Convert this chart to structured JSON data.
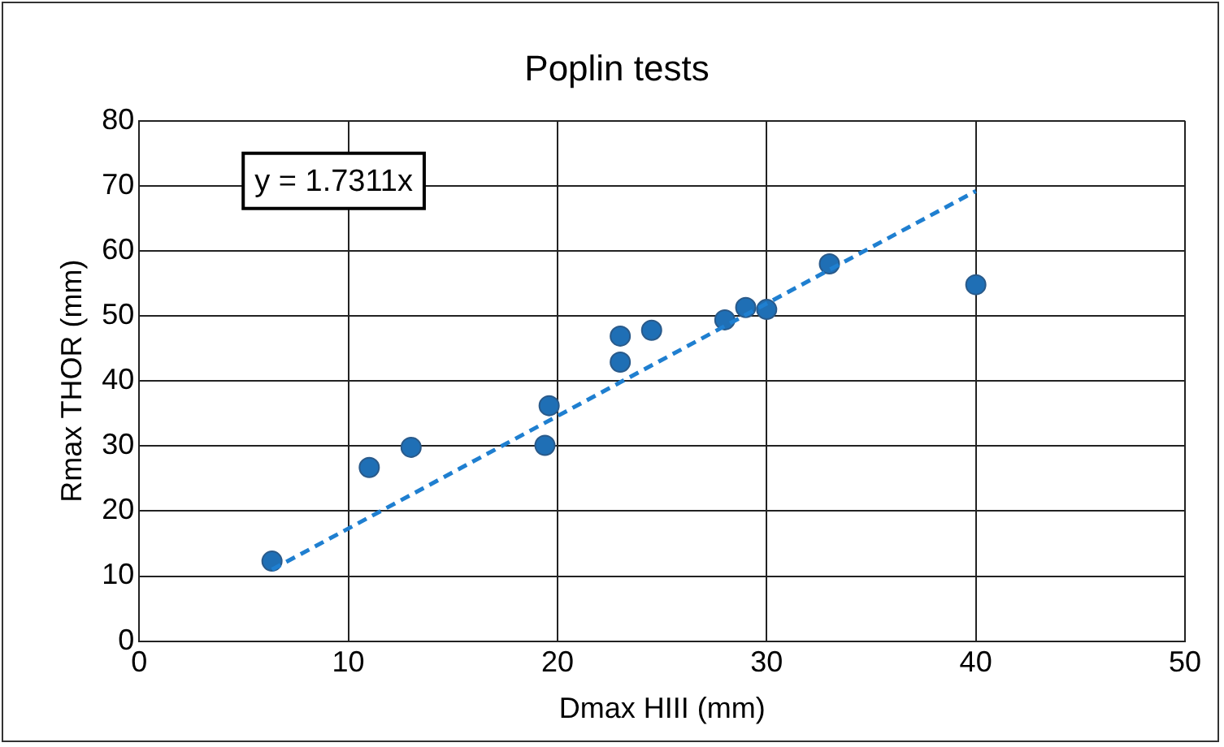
{
  "chart_data": {
    "type": "scatter",
    "title": "Poplin tests",
    "xlabel": "Dmax HIII (mm)",
    "ylabel": "Rmax THOR (mm)",
    "series": [
      {
        "color": "#1f6fb5",
        "x": [
          6.35,
          11.0,
          13.0,
          19.4,
          19.6,
          23.0,
          23.0,
          24.5,
          28.0,
          29.0,
          30.0,
          33.0,
          40.0
        ],
        "values": [
          12.3,
          26.7,
          29.8,
          30.1,
          36.2,
          46.9,
          42.9,
          47.8,
          49.4,
          51.3,
          51.0,
          58.0,
          54.8
        ]
      },
      {
        "type": "line",
        "color": "#1f7fd0",
        "line_style": "dashed",
        "marker": "none",
        "x": [
          6.35,
          40
        ],
        "values": [
          11.0,
          69.2
        ]
      }
    ],
    "xlim": [
      0,
      50
    ],
    "xticks": [
      0,
      10,
      20,
      30,
      40,
      50
    ],
    "ylim": [
      0,
      80
    ],
    "yticks": [
      0,
      10,
      20,
      30,
      40,
      50,
      60,
      70,
      80
    ],
    "grid": true,
    "legend": false,
    "marker": "circle",
    "annotations": [
      "y = 1.7311x"
    ]
  }
}
